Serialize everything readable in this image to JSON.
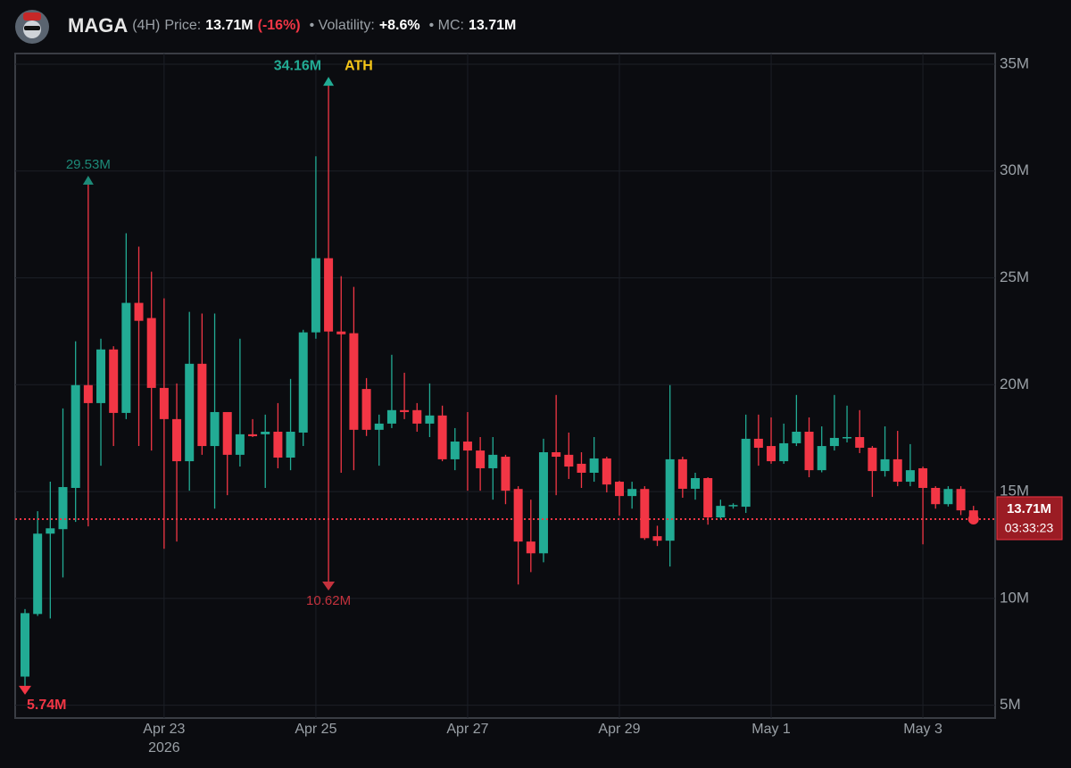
{
  "header": {
    "name": "MAGA",
    "interval": "(4H)",
    "price_label": "Price:",
    "price": "13.71M",
    "change": "(-16%)",
    "volatility_label": "• Volatility:",
    "volatility": "+8.6%",
    "mc_label": "• MC:",
    "mc": "13.71M"
  },
  "chart_data": {
    "type": "candlestick",
    "categories": [
      null,
      null,
      null,
      null,
      null,
      null,
      null,
      null,
      null,
      null,
      null,
      "Apr 23",
      null,
      null,
      null,
      null,
      null,
      null,
      null,
      null,
      null,
      null,
      null,
      "Apr 25",
      null,
      null,
      null,
      null,
      null,
      null,
      null,
      null,
      null,
      null,
      null,
      "Apr 27",
      null,
      null,
      null,
      null,
      null,
      null,
      null,
      null,
      null,
      null,
      null,
      "Apr 29",
      null,
      null,
      null,
      null,
      null,
      null,
      null,
      null,
      null,
      null,
      null,
      "May 1",
      null,
      null,
      null,
      null,
      null,
      null,
      null,
      null,
      null,
      null,
      null,
      "May 3",
      null,
      null,
      null,
      null
    ],
    "x_year": "2026",
    "open": [
      6.34,
      9.27,
      13.03,
      13.24,
      15.17,
      19.98,
      19.14,
      21.65,
      18.68,
      23.83,
      23.12,
      19.85,
      18.39,
      16.42,
      20.98,
      17.13,
      18.72,
      16.72,
      17.68,
      17.68,
      17.8,
      16.59,
      17.76,
      22.45,
      25.92,
      22.49,
      22.41,
      19.8,
      17.89,
      18.18,
      18.81,
      18.81,
      18.18,
      18.56,
      16.51,
      17.34,
      16.92,
      16.09,
      16.63,
      15.12,
      12.66,
      12.11,
      16.84,
      16.72,
      16.3,
      15.88,
      16.55,
      15.46,
      14.79,
      15.12,
      12.91,
      12.7,
      16.51,
      15.13,
      15.63,
      13.79,
      14.33,
      14.29,
      17.47,
      17.13,
      16.42,
      17.26,
      17.8,
      16.0,
      17.13,
      17.51,
      17.55,
      17.05,
      15.96,
      16.51,
      15.46,
      16.09,
      15.17,
      14.41,
      15.12,
      14.12
    ],
    "high": [
      9.5,
      14.08,
      15.46,
      18.89,
      22.03,
      29.53,
      22.15,
      21.8,
      27.09,
      26.46,
      25.29,
      24.04,
      20.06,
      23.41,
      23.33,
      23.33,
      18.72,
      22.15,
      18.39,
      18.6,
      19.14,
      20.27,
      22.57,
      30.69,
      34.16,
      25.08,
      24.58,
      20.31,
      18.6,
      21.4,
      20.56,
      19.14,
      20.06,
      19.02,
      17.97,
      18.72,
      17.55,
      17.55,
      16.72,
      15.25,
      14.62,
      17.47,
      19.52,
      17.76,
      16.84,
      17.55,
      16.63,
      15.5,
      15.46,
      15.25,
      13.4,
      19.98,
      16.63,
      15.88,
      15.67,
      14.62,
      14.45,
      18.6,
      18.6,
      18.47,
      18.18,
      19.52,
      18.47,
      18.05,
      19.52,
      19.02,
      18.81,
      17.13,
      18.05,
      17.84,
      17.22,
      16.17,
      15.25,
      15.25,
      15.25,
      14.33
    ],
    "low": [
      5.74,
      9.18,
      9.06,
      10.98,
      13.58,
      13.37,
      16.21,
      17.13,
      18.39,
      17.13,
      16.92,
      12.32,
      12.66,
      15.04,
      16.72,
      14.2,
      14.83,
      16.17,
      17.55,
      15.17,
      16.09,
      16.0,
      17.13,
      22.15,
      10.62,
      15.88,
      16.0,
      17.6,
      16.21,
      17.97,
      18.39,
      17.8,
      17.55,
      16.42,
      16.0,
      15.04,
      15.04,
      14.62,
      14.41,
      10.65,
      11.23,
      11.69,
      14.83,
      15.59,
      15.17,
      15.46,
      14.96,
      13.87,
      14.2,
      12.74,
      12.45,
      11.49,
      14.71,
      14.62,
      13.45,
      13.7,
      14.2,
      14.0,
      16.21,
      16.3,
      16.3,
      17.13,
      15.67,
      15.9,
      16.92,
      17.3,
      16.8,
      14.75,
      15.7,
      15.25,
      15.25,
      12.53,
      14.2,
      14.3,
      13.9,
      13.55
    ],
    "close": [
      9.31,
      13.03,
      13.28,
      15.21,
      19.98,
      19.14,
      21.65,
      18.68,
      23.83,
      22.99,
      19.85,
      18.39,
      16.42,
      20.98,
      17.13,
      18.72,
      16.72,
      17.68,
      17.59,
      17.8,
      16.59,
      17.8,
      22.45,
      25.92,
      22.49,
      22.36,
      17.89,
      17.89,
      18.18,
      18.81,
      18.72,
      18.18,
      18.56,
      16.51,
      17.34,
      16.92,
      16.09,
      16.72,
      15.04,
      12.66,
      12.11,
      16.84,
      16.63,
      16.17,
      15.88,
      16.55,
      15.33,
      14.79,
      15.12,
      12.82,
      12.7,
      16.51,
      15.13,
      15.63,
      13.79,
      14.33,
      14.37,
      17.47,
      17.05,
      16.42,
      17.26,
      17.8,
      16.0,
      17.13,
      17.51,
      17.55,
      17.05,
      15.96,
      16.51,
      15.46,
      16.0,
      15.17,
      14.41,
      15.12,
      14.12,
      13.71
    ],
    "up_color": "#22ab94",
    "down_color": "#f23645",
    "ylim": [
      4.4,
      35.5
    ],
    "yticks": [
      {
        "value": 5,
        "label": "5M"
      },
      {
        "value": 10,
        "label": "10M"
      },
      {
        "value": 15,
        "label": "15M"
      },
      {
        "value": 20,
        "label": "20M"
      },
      {
        "value": 25,
        "label": "25M"
      },
      {
        "value": 30,
        "label": "30M"
      },
      {
        "value": 35,
        "label": "35M"
      }
    ],
    "grid": true,
    "annotations": [
      {
        "label": "34.16M",
        "value": 34.16,
        "tag": "ATH"
      },
      {
        "label": "29.53M",
        "value": 29.53
      },
      {
        "label": "10.62M",
        "value": 10.62
      },
      {
        "label": "5.74M",
        "value": 5.74
      }
    ],
    "current_price": {
      "value": 13.71,
      "label": "13.71M"
    },
    "countdown": "03:33:23"
  }
}
